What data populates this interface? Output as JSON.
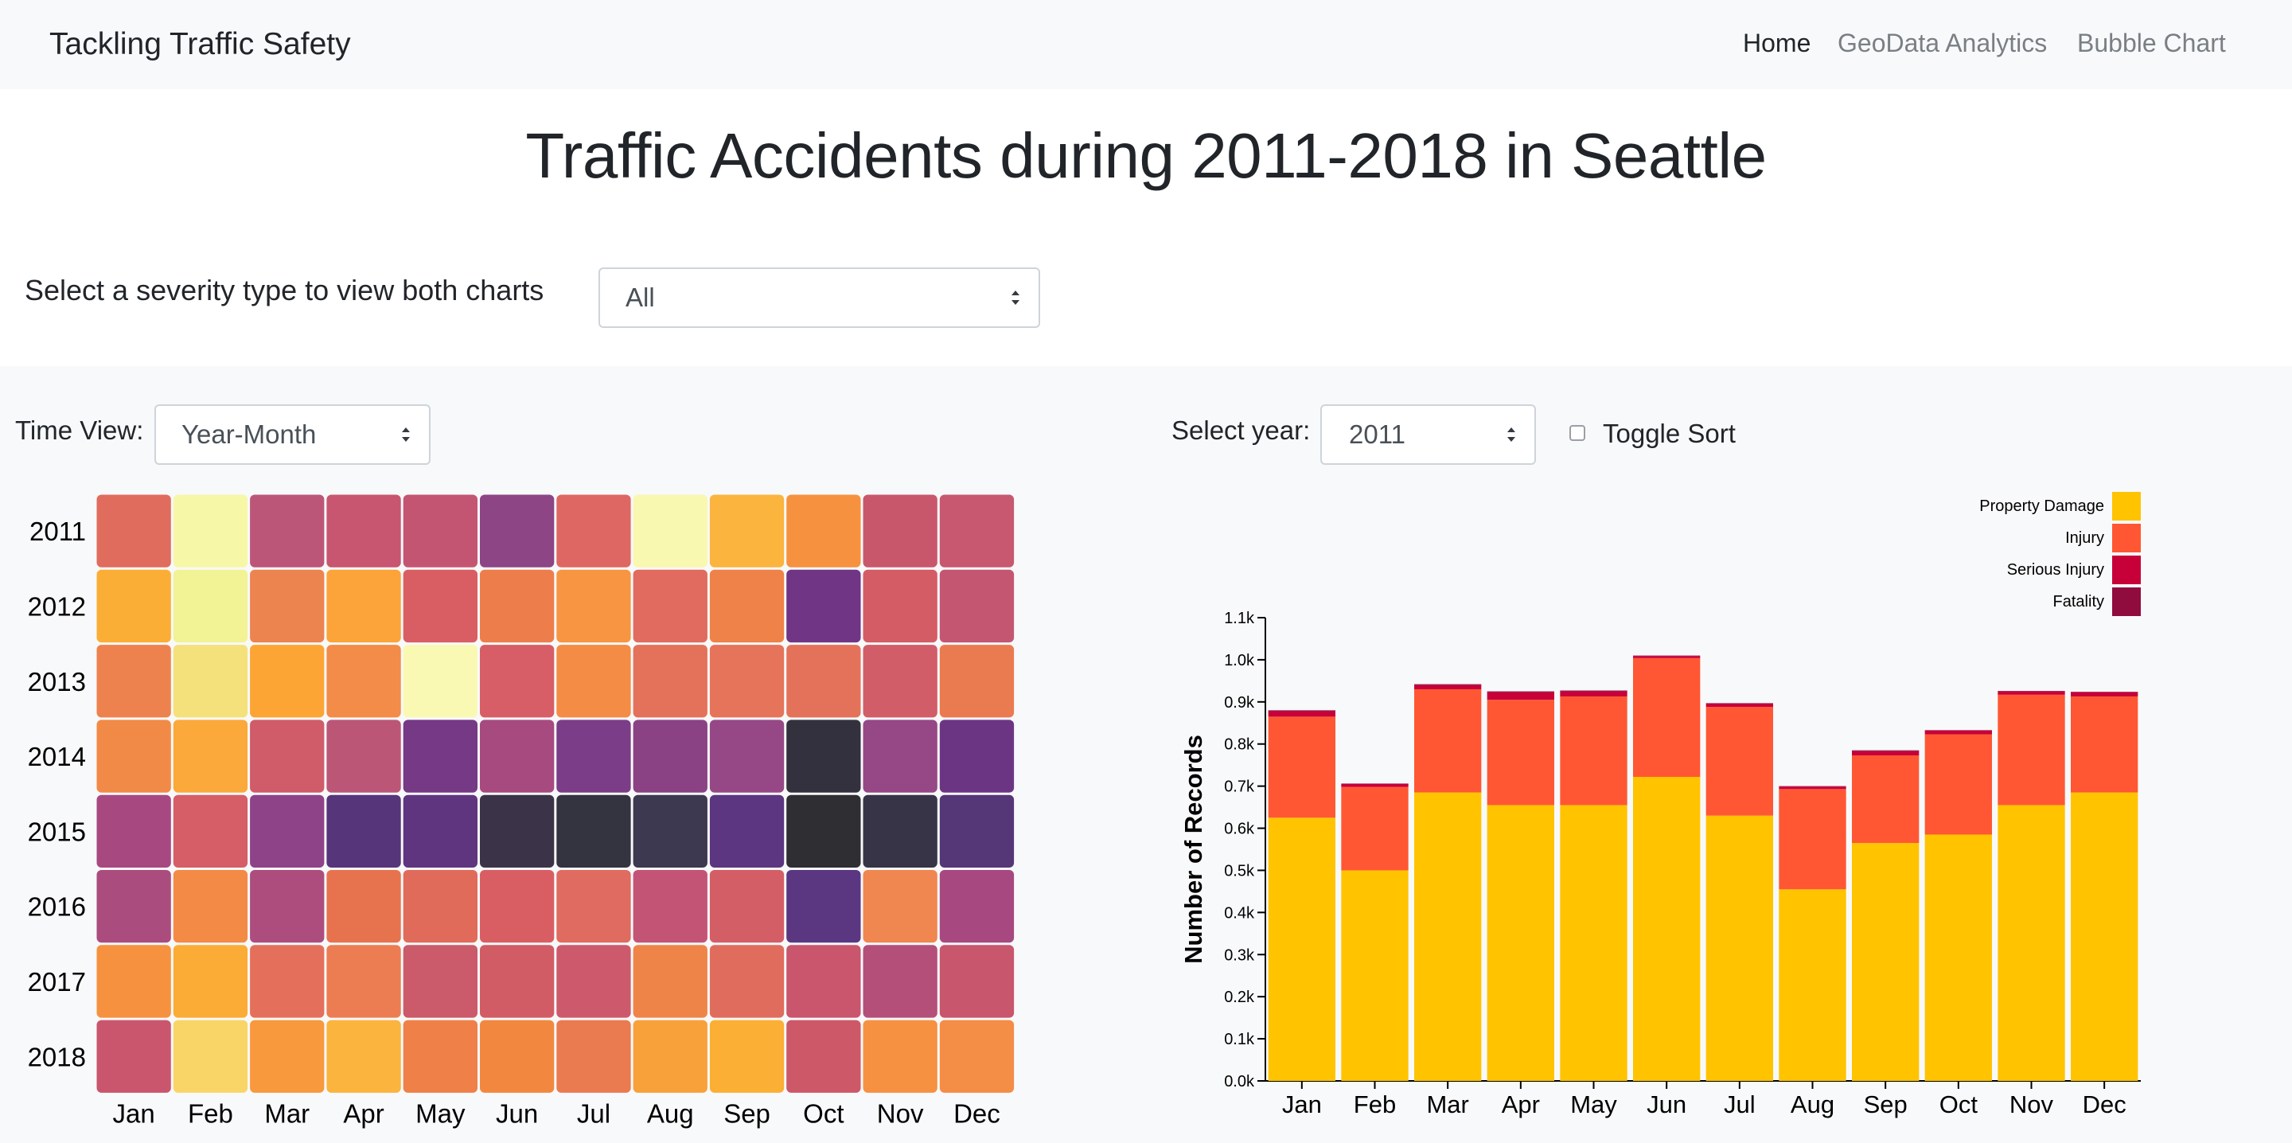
{
  "navbar": {
    "brand": "Tackling Traffic Safety",
    "links": [
      {
        "label": "Home",
        "active": true
      },
      {
        "label": "GeoData Analytics",
        "active": false
      },
      {
        "label": "Bubble Chart",
        "active": false
      }
    ]
  },
  "page_title": "Traffic Accidents during 2011-2018 in Seattle",
  "severity_select": {
    "label": "Select a severity type to view both charts",
    "value": "All"
  },
  "time_view": {
    "label": "Time View:",
    "value": "Year-Month"
  },
  "year_select": {
    "label": "Select year:",
    "value": "2011"
  },
  "toggle_sort": {
    "label": "Toggle Sort",
    "checked": false
  },
  "colors": {
    "property_damage": "#ffc300",
    "injury": "#ff5733",
    "serious_injury": "#c70039",
    "fatality": "#900c3f"
  },
  "chart_data": [
    {
      "type": "heatmap",
      "colormap": "inferno (light = fewer, dark = more)",
      "rows": [
        "2011",
        "2012",
        "2013",
        "2014",
        "2015",
        "2016",
        "2017",
        "2018"
      ],
      "columns": [
        "Jan",
        "Feb",
        "Mar",
        "Apr",
        "May",
        "Jun",
        "Jul",
        "Aug",
        "Sep",
        "Oct",
        "Nov",
        "Dec"
      ],
      "cell_colors": [
        [
          "#e06c5e",
          "#f7f7a8",
          "#bc5679",
          "#c85670",
          "#c45572",
          "#8d4586",
          "#de6763",
          "#f9f8b0",
          "#fbb43e",
          "#f6923f",
          "#c9576c",
          "#c75870"
        ],
        [
          "#fbae36",
          "#f2f395",
          "#ec8450",
          "#fca43a",
          "#d95e63",
          "#ee7d4c",
          "#f79542",
          "#e06b5e",
          "#ef8248",
          "#703584",
          "#d45c65",
          "#c55672"
        ],
        [
          "#ee824e",
          "#f5e17b",
          "#fca535",
          "#f28c48",
          "#f9f9b4",
          "#d75e66",
          "#f48c46",
          "#e4715a",
          "#e6745a",
          "#e4725a",
          "#d15d68",
          "#ea7b50"
        ],
        [
          "#f28a47",
          "#fba93a",
          "#d05b69",
          "#bc5677",
          "#753985",
          "#a74a80",
          "#7b3d87",
          "#8a4284",
          "#964886",
          "#34313f",
          "#964786",
          "#6c3584"
        ],
        [
          "#a84881",
          "#d55e67",
          "#8e4389",
          "#56357a",
          "#60357f",
          "#3b3449",
          "#343340",
          "#3d3950",
          "#5c3680",
          "#2f2f33",
          "#383447",
          "#553677"
        ],
        [
          "#ab4c7e",
          "#f38a46",
          "#ac4d7e",
          "#e7734e",
          "#e16b5b",
          "#d95e63",
          "#e06b60",
          "#c45476",
          "#d45e66",
          "#5b3782",
          "#f08650",
          "#a84880"
        ],
        [
          "#f6923f",
          "#fbac36",
          "#e4705b",
          "#ec7d52",
          "#cb5a6a",
          "#d15c65",
          "#cd5a6c",
          "#ef8448",
          "#e06c5e",
          "#c9566d",
          "#b44f7a",
          "#c8566c"
        ],
        [
          "#c9566d",
          "#f9d568",
          "#f7993c",
          "#fbb43e",
          "#ef8048",
          "#f2883f",
          "#ea7b50",
          "#f8a13b",
          "#fbaf35",
          "#cd5868",
          "#f69142",
          "#f48d46"
        ]
      ]
    },
    {
      "type": "bar",
      "stacked": true,
      "categories": [
        "Jan",
        "Feb",
        "Mar",
        "Apr",
        "May",
        "Jun",
        "Jul",
        "Aug",
        "Sep",
        "Oct",
        "Nov",
        "Dec"
      ],
      "series": [
        {
          "name": "Property Damage",
          "values": [
            625,
            500,
            685,
            655,
            655,
            722,
            630,
            455,
            565,
            585,
            655,
            685
          ]
        },
        {
          "name": "Injury",
          "values": [
            240,
            198,
            245,
            250,
            258,
            282,
            258,
            238,
            208,
            238,
            262,
            228
          ]
        },
        {
          "name": "Serious Injury",
          "values": [
            13,
            7,
            10,
            18,
            12,
            5,
            8,
            6,
            10,
            9,
            8,
            10
          ]
        },
        {
          "name": "Fatality",
          "values": [
            2,
            1,
            2,
            2,
            2,
            1,
            1,
            1,
            2,
            1,
            1,
            1
          ]
        }
      ],
      "ylabel": "Number of Records",
      "ylim": [
        0,
        1100
      ],
      "yticks": [
        "0.0k",
        "0.1k",
        "0.2k",
        "0.3k",
        "0.4k",
        "0.5k",
        "0.6k",
        "0.7k",
        "0.8k",
        "0.9k",
        "1.0k",
        "1.1k"
      ],
      "legend_position": "top-right"
    }
  ]
}
